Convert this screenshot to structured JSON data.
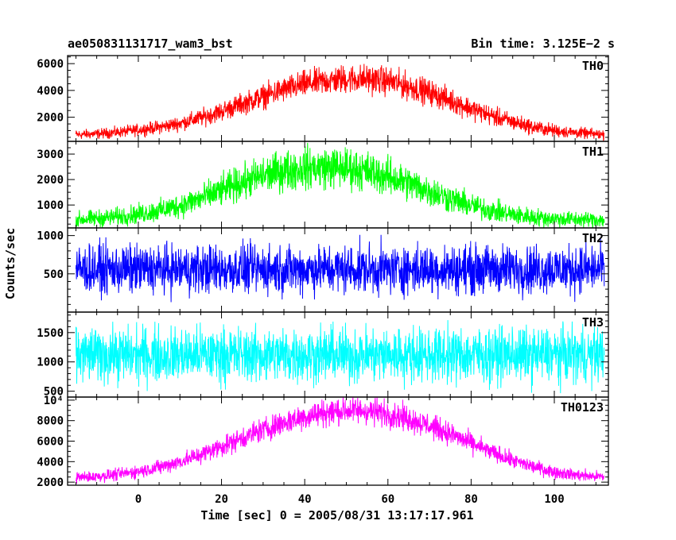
{
  "header": {
    "title": "ae050831131717_wam3_bst",
    "bin_time": "Bin time: 3.125E−2 s"
  },
  "chart_data": {
    "type": "line",
    "xlabel": "Time [sec] 0 = 2005/08/31 13:17:17.961",
    "ylabel": "Counts/sec",
    "xlim": [
      -17,
      113
    ],
    "x_ticks": [
      0,
      20,
      40,
      60,
      80,
      100
    ],
    "grid": false,
    "panels": [
      {
        "name": "TH0",
        "color": "#ff0000",
        "ylim": [
          200,
          6600
        ],
        "y_ticks": [
          2000,
          4000,
          6000
        ],
        "y_tick_labels": [
          "2000",
          "4000",
          "6000"
        ],
        "x": [
          -15,
          -10,
          -5,
          0,
          5,
          10,
          15,
          20,
          25,
          30,
          35,
          40,
          45,
          50,
          55,
          60,
          65,
          70,
          75,
          80,
          85,
          90,
          95,
          100,
          105,
          112
        ],
        "center": [
          700,
          760,
          880,
          1050,
          1250,
          1550,
          1950,
          2450,
          3000,
          3550,
          4050,
          4450,
          4700,
          4850,
          4850,
          4700,
          4300,
          3850,
          3250,
          2650,
          2100,
          1650,
          1250,
          1000,
          850,
          700
        ],
        "spread": [
          260,
          270,
          290,
          320,
          350,
          400,
          460,
          520,
          580,
          640,
          690,
          730,
          760,
          780,
          780,
          760,
          730,
          690,
          640,
          580,
          520,
          460,
          400,
          350,
          300,
          270
        ]
      },
      {
        "name": "TH1",
        "color": "#00ff00",
        "ylim": [
          100,
          3500
        ],
        "y_ticks": [
          1000,
          2000,
          3000
        ],
        "y_tick_labels": [
          "1000",
          "2000",
          "3000"
        ],
        "x": [
          -15,
          -10,
          -5,
          0,
          5,
          10,
          15,
          20,
          25,
          30,
          35,
          40,
          45,
          50,
          55,
          60,
          65,
          70,
          75,
          80,
          85,
          90,
          95,
          100,
          105,
          112
        ],
        "center": [
          430,
          470,
          540,
          640,
          780,
          980,
          1250,
          1560,
          1880,
          2150,
          2350,
          2450,
          2480,
          2450,
          2330,
          2120,
          1850,
          1560,
          1250,
          980,
          780,
          620,
          520,
          460,
          430,
          420
        ],
        "spread": [
          230,
          240,
          260,
          280,
          310,
          350,
          400,
          450,
          500,
          540,
          570,
          590,
          600,
          590,
          570,
          540,
          500,
          450,
          400,
          350,
          310,
          280,
          260,
          240,
          230,
          230
        ]
      },
      {
        "name": "TH2",
        "color": "#0000ff",
        "ylim": [
          0,
          1100
        ],
        "y_ticks": [
          500,
          1000
        ],
        "y_tick_labels": [
          "500",
          "1000"
        ],
        "x": [
          -15,
          112
        ],
        "center": [
          560,
          560
        ],
        "spread": [
          230,
          230
        ]
      },
      {
        "name": "TH3",
        "color": "#00ffff",
        "ylim": [
          400,
          1850
        ],
        "y_ticks": [
          500,
          1000,
          1500
        ],
        "y_tick_labels": [
          "500",
          "1000",
          "1500"
        ],
        "x": [
          -15,
          112
        ],
        "center": [
          1120,
          1120
        ],
        "spread": [
          340,
          340
        ]
      },
      {
        "name": "TH0123",
        "color": "#ff00ff",
        "ylim": [
          1700,
          10300
        ],
        "y_ticks": [
          2000,
          4000,
          6000,
          8000,
          10000
        ],
        "y_tick_labels": [
          "2000",
          "4000",
          "6000",
          "8000",
          "10⁴"
        ],
        "x": [
          -15,
          -10,
          -5,
          0,
          5,
          10,
          15,
          20,
          25,
          30,
          35,
          40,
          45,
          50,
          55,
          60,
          65,
          70,
          75,
          80,
          85,
          90,
          95,
          100,
          105,
          112
        ],
        "center": [
          2450,
          2550,
          2750,
          3050,
          3450,
          4000,
          4700,
          5500,
          6300,
          7100,
          7800,
          8400,
          8800,
          9000,
          8950,
          8700,
          8200,
          7500,
          6700,
          5800,
          4900,
          4100,
          3500,
          3000,
          2700,
          2500
        ],
        "spread": [
          380,
          400,
          430,
          470,
          520,
          580,
          650,
          720,
          790,
          850,
          900,
          940,
          970,
          990,
          980,
          960,
          920,
          870,
          800,
          720,
          640,
          560,
          500,
          450,
          410,
          390
        ]
      }
    ]
  }
}
